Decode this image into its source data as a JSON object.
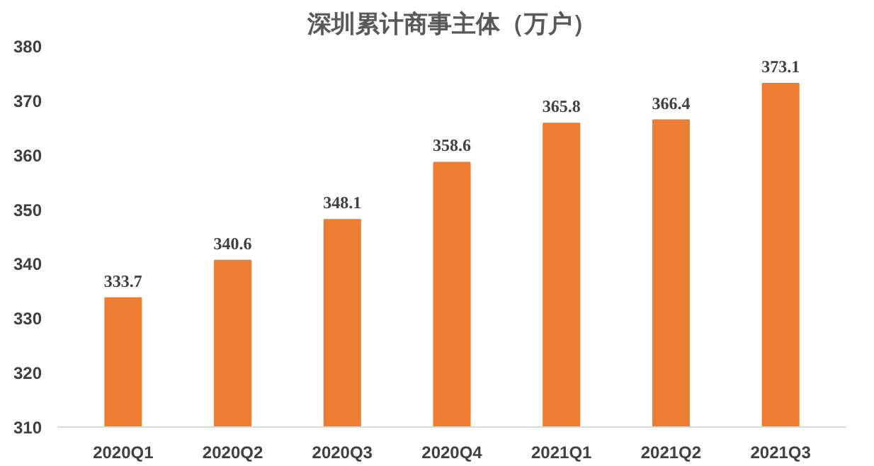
{
  "chart_data": {
    "type": "bar",
    "title": "深圳累计商事主体（万户）",
    "categories": [
      "2020Q1",
      "2020Q2",
      "2020Q3",
      "2020Q4",
      "2021Q1",
      "2021Q2",
      "2021Q3"
    ],
    "values": [
      333.7,
      340.6,
      348.1,
      358.6,
      365.8,
      366.4,
      373.1
    ],
    "color": "#ed7d31",
    "ylim": [
      310,
      380
    ],
    "yticks": [
      310,
      320,
      330,
      340,
      350,
      360,
      370,
      380
    ],
    "data_labels": true,
    "grid": false
  }
}
